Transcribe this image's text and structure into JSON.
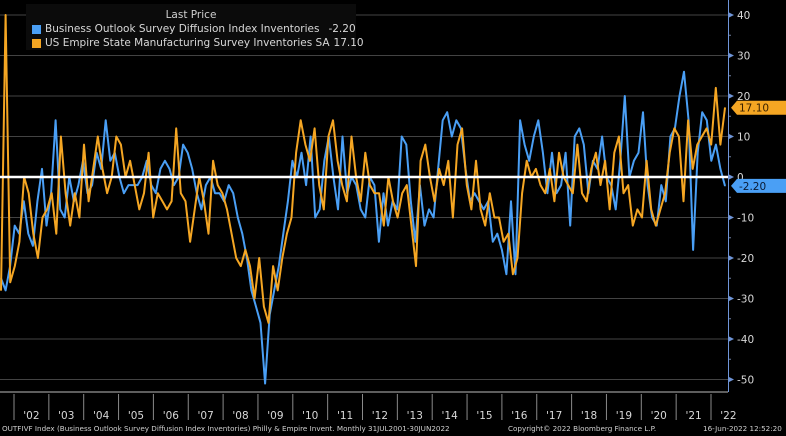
{
  "chart_data": {
    "type": "line",
    "title": "",
    "legend": {
      "title": "Last Price",
      "placement": "top-left",
      "entries": [
        {
          "name": "Business Outlook Survey Diffusion Index Inventories",
          "last": "-2.20",
          "color": "#4a9ff5"
        },
        {
          "name": "US Empire State Manufacturing Survey Inventories SA",
          "last": "17.10",
          "color": "#f5a623"
        }
      ]
    },
    "xlabel": "",
    "ylabel": "",
    "x_range": [
      "2001-07",
      "2022-06"
    ],
    "x_ticks": [
      "'02",
      "'03",
      "'04",
      "'05",
      "'06",
      "'07",
      "'08",
      "'09",
      "'10",
      "'11",
      "'12",
      "'13",
      "'14",
      "'15",
      "'16",
      "'17",
      "'18",
      "'19",
      "'20",
      "'21",
      "'22"
    ],
    "y_ticks": [
      40,
      30,
      20,
      10,
      0,
      -10,
      -20,
      -30,
      -40,
      -50
    ],
    "ylim": [
      -52,
      41
    ],
    "grid": true,
    "zero_line": true,
    "x_step": "bi-monthly (approx.)",
    "series": [
      {
        "name": "Business Outlook Survey Diffusion Index Inventories",
        "color": "#4a9ff5",
        "last_value": -2.2,
        "values": [
          -25,
          -28,
          -22,
          -12,
          -14,
          -6,
          -14,
          -17,
          -6,
          2,
          -12,
          -4,
          14,
          -8,
          -10,
          0,
          -6,
          -2,
          4,
          -4,
          -2,
          6,
          2,
          14,
          4,
          6,
          0,
          -4,
          -2,
          -2,
          -2,
          0,
          4,
          -2,
          -4,
          2,
          4,
          2,
          -2,
          0,
          8,
          6,
          2,
          -4,
          -8,
          -2,
          0,
          -4,
          -4,
          -6,
          -2,
          -4,
          -10,
          -14,
          -20,
          -28,
          -32,
          -36,
          -51,
          -34,
          -28,
          -22,
          -14,
          -6,
          4,
          0,
          6,
          -2,
          10,
          -10,
          -8,
          4,
          10,
          0,
          -8,
          10,
          -4,
          0,
          -2,
          -8,
          -10,
          0,
          -2,
          -16,
          -4,
          -12,
          -6,
          -8,
          10,
          8,
          -6,
          -16,
          -2,
          -12,
          -8,
          -10,
          2,
          14,
          16,
          10,
          14,
          12,
          2,
          -6,
          -4,
          -6,
          -8,
          -6,
          -16,
          -14,
          -18,
          -24,
          -6,
          -24,
          14,
          8,
          4,
          10,
          14,
          6,
          -4,
          6,
          -4,
          -2,
          6,
          -12,
          10,
          12,
          8,
          -4,
          4,
          2,
          10,
          0,
          -2,
          -8,
          4,
          20,
          0,
          4,
          6,
          16,
          -2,
          -10,
          -12,
          -2,
          -6,
          10,
          12,
          20,
          26,
          14,
          -18,
          6,
          16,
          14,
          4,
          8,
          2,
          -2.2
        ]
      },
      {
        "name": "US Empire State Manufacturing Survey Inventories SA",
        "color": "#f5a623",
        "last_value": 17.1,
        "values": [
          -28,
          40,
          -26,
          -22,
          -16,
          0,
          -4,
          -14,
          -20,
          -10,
          -8,
          -4,
          -14,
          10,
          -4,
          -12,
          -4,
          -10,
          8,
          -6,
          2,
          10,
          2,
          -4,
          0,
          10,
          8,
          0,
          4,
          -2,
          -8,
          -4,
          6,
          -10,
          -4,
          -6,
          -8,
          -6,
          12,
          -4,
          -6,
          -16,
          -8,
          0,
          -6,
          -14,
          4,
          -2,
          -4,
          -8,
          -14,
          -20,
          -22,
          -18,
          -22,
          -30,
          -20,
          -32,
          -36,
          -22,
          -28,
          -20,
          -14,
          -10,
          6,
          14,
          8,
          4,
          12,
          -2,
          -8,
          10,
          14,
          4,
          -2,
          -6,
          10,
          0,
          -6,
          6,
          -2,
          -4,
          -4,
          -12,
          0,
          -6,
          -10,
          -4,
          -2,
          -12,
          -22,
          4,
          8,
          0,
          -6,
          2,
          -2,
          4,
          -10,
          8,
          12,
          -2,
          -8,
          4,
          -8,
          -12,
          -4,
          -10,
          -10,
          -16,
          -14,
          -24,
          -20,
          -4,
          4,
          0,
          2,
          -2,
          -4,
          2,
          -6,
          6,
          0,
          -2,
          -4,
          8,
          -4,
          -6,
          2,
          6,
          -2,
          4,
          -8,
          6,
          10,
          -4,
          -2,
          -12,
          -8,
          -10,
          4,
          -8,
          -12,
          -8,
          -4,
          6,
          12,
          10,
          -6,
          14,
          2,
          8,
          10,
          12,
          8,
          22,
          8,
          17.1
        ]
      }
    ]
  },
  "axis": {
    "right_badges": {
      "orange": "17.10",
      "blue": "-2.20"
    }
  },
  "footer": {
    "left": "OUTFIVF Index (Business Outlook Survey Diffusion Index Inventories) Philly & Empire Invent.  Monthly 31JUL2001-30JUN2022",
    "center": "Copyright© 2022 Bloomberg Finance L.P.",
    "right": "16-Jun-2022 12:52:20"
  }
}
